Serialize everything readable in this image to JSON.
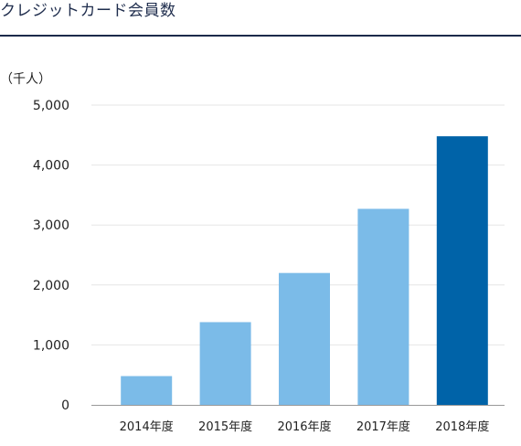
{
  "page": {
    "title": "クレジットカード会員数"
  },
  "colors": {
    "bar": "#7bbbe8",
    "bar_highlight": "#0063a8",
    "grid": "#e6e6e6",
    "axis": "#999999",
    "text": "#222222",
    "header_rule": "#1c2a4a"
  },
  "chart_data": {
    "type": "bar",
    "unit_label": "（千人）",
    "categories": [
      "2014年度",
      "2015年度",
      "2016年度",
      "2017年度",
      "2018年度"
    ],
    "values": [
      480,
      1380,
      2200,
      3270,
      4480
    ],
    "highlight_index": 4,
    "ylim": [
      0,
      5000
    ],
    "yticks": [
      0,
      1000,
      2000,
      3000,
      4000,
      5000
    ],
    "ytick_labels": [
      "0",
      "1,000",
      "2,000",
      "3,000",
      "4,000",
      "5,000"
    ],
    "grid": true,
    "legend": "none",
    "title": "",
    "xlabel": "",
    "ylabel": ""
  }
}
